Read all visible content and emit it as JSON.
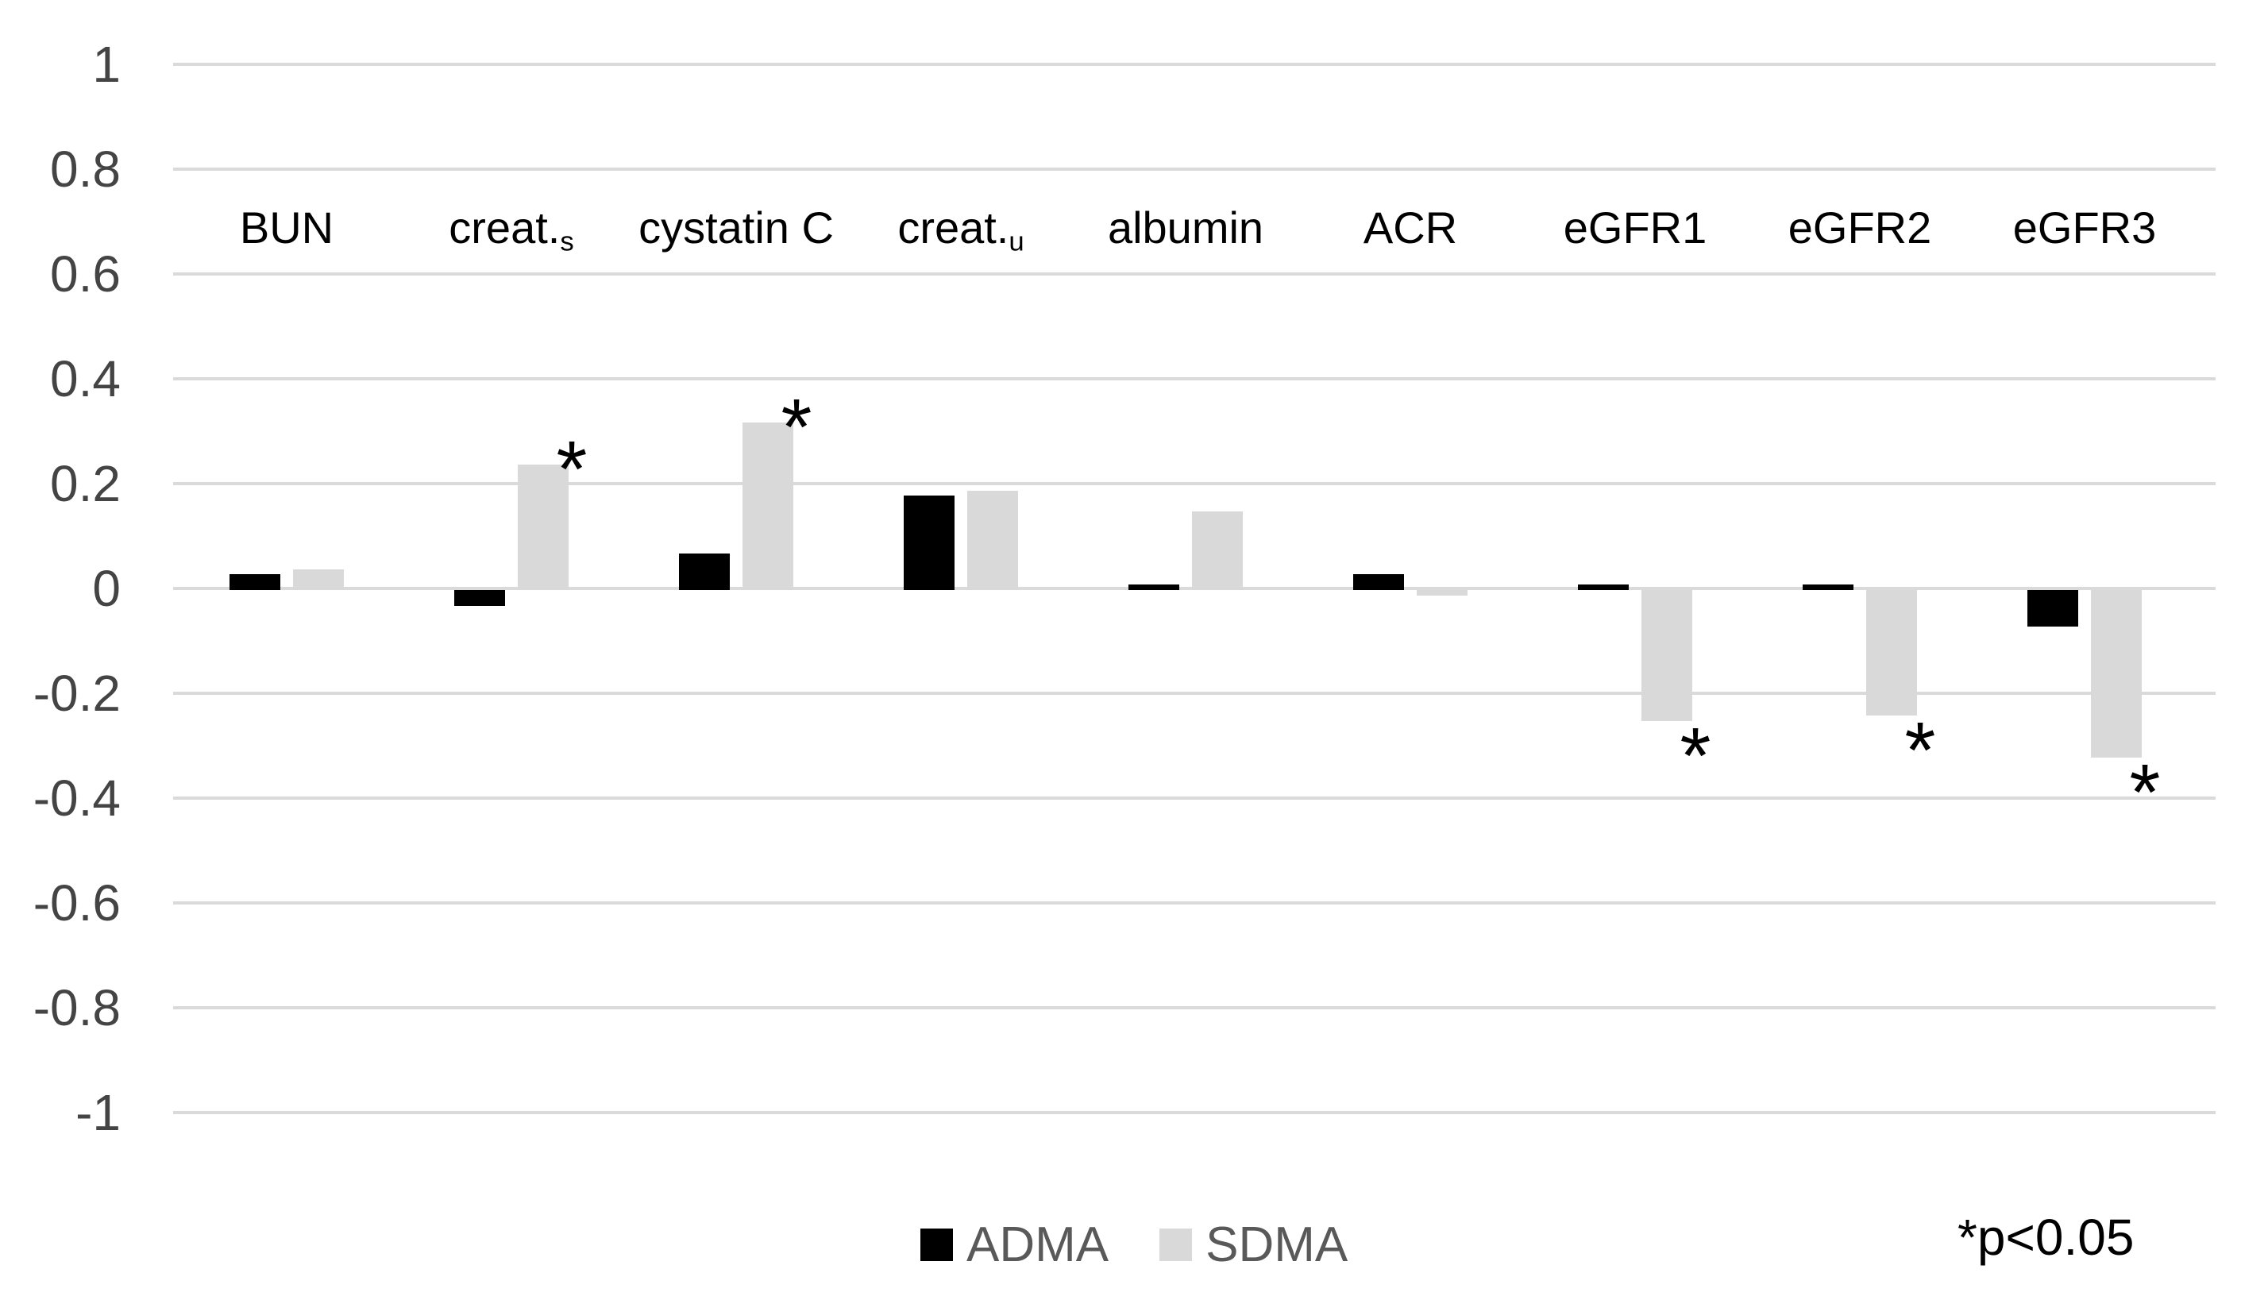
{
  "chart_data": {
    "type": "bar",
    "title": "",
    "xlabel": "",
    "ylabel": "",
    "categories": [
      "BUN",
      "creat.s",
      "cystatin C",
      "creat.u",
      "albumin",
      "ACR",
      "eGFR1",
      "eGFR2",
      "eGFR3"
    ],
    "categories_display": [
      {
        "base": "BUN",
        "sub": ""
      },
      {
        "base": "creat.",
        "sub": "s"
      },
      {
        "base": "cystatin C",
        "sub": ""
      },
      {
        "base": "creat.",
        "sub": "u"
      },
      {
        "base": "albumin",
        "sub": ""
      },
      {
        "base": "ACR",
        "sub": ""
      },
      {
        "base": "eGFR1",
        "sub": ""
      },
      {
        "base": "eGFR2",
        "sub": ""
      },
      {
        "base": "eGFR3",
        "sub": ""
      }
    ],
    "series": [
      {
        "name": "ADMA",
        "color": "#000000",
        "values": [
          0.03,
          -0.03,
          0.07,
          0.18,
          0.01,
          0.03,
          0.01,
          0.01,
          -0.07
        ],
        "significant": [
          false,
          false,
          false,
          false,
          false,
          false,
          false,
          false,
          false
        ]
      },
      {
        "name": "SDMA",
        "color": "#d9d9d9",
        "values": [
          0.04,
          0.24,
          0.32,
          0.19,
          0.15,
          -0.01,
          -0.25,
          -0.24,
          -0.32
        ],
        "significant": [
          false,
          true,
          true,
          false,
          false,
          false,
          true,
          true,
          true
        ]
      }
    ],
    "ylim": [
      -1,
      1
    ],
    "ytick_step": 0.2,
    "ytick_labels": [
      "1",
      "0.8",
      "0.6",
      "0.4",
      "0.2",
      "0",
      "-0.2",
      "-0.4",
      "-0.6",
      "-0.8",
      "-1"
    ],
    "grid": true,
    "gridline_color": "#dadada",
    "axis_label_color": "#444444",
    "category_label_color": "#000000",
    "significance_marker": "*",
    "legend_position": "bottom-center"
  },
  "legend": {
    "items": [
      {
        "label": "ADMA",
        "color": "#000000"
      },
      {
        "label": "SDMA",
        "color": "#d9d9d9"
      }
    ],
    "text_color": "#595959"
  },
  "footnote": {
    "text": "*p<0.05"
  }
}
